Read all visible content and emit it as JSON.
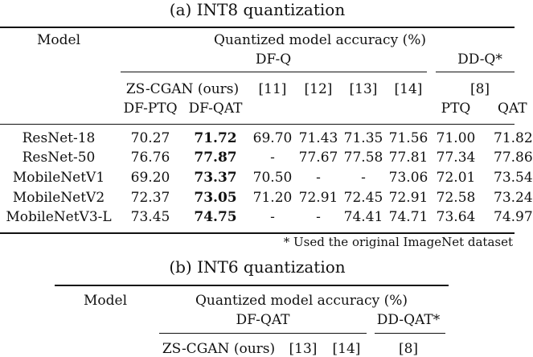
{
  "table_a": {
    "caption": "(a) INT8 quantization",
    "model_header": "Model",
    "group_header": "Quantized model accuracy (%)",
    "dfq_label": "DF-Q",
    "ddq_label": "DD-Q*",
    "zs_label": "ZS-CGAN (ours)",
    "ref11": "[11]",
    "ref12": "[12]",
    "ref13": "[13]",
    "ref14": "[14]",
    "ref8": "[8]",
    "col_ptq": "DF-PTQ",
    "col_qat": "DF-QAT",
    "col_dd_ptq": "PTQ",
    "col_dd_qat": "QAT",
    "rows": [
      {
        "model": "ResNet-18",
        "v": [
          "70.27",
          "71.72",
          "69.70",
          "71.43",
          "71.35",
          "71.56",
          "71.00",
          "71.82"
        ]
      },
      {
        "model": "ResNet-50",
        "v": [
          "76.76",
          "77.87",
          "-",
          "77.67",
          "77.58",
          "77.81",
          "77.34",
          "77.86"
        ]
      },
      {
        "model": "MobileNetV1",
        "v": [
          "69.20",
          "73.37",
          "70.50",
          "-",
          "-",
          "73.06",
          "72.01",
          "73.54"
        ]
      },
      {
        "model": "MobileNetV2",
        "v": [
          "72.37",
          "73.05",
          "71.20",
          "72.91",
          "72.45",
          "72.91",
          "72.58",
          "73.24"
        ]
      },
      {
        "model": "MobileNetV3-L",
        "v": [
          "73.45",
          "74.75",
          "-",
          "-",
          "74.41",
          "74.71",
          "73.64",
          "74.97"
        ]
      }
    ],
    "footnote": "* Used the original ImageNet dataset"
  },
  "table_b": {
    "caption": "(b) INT6 quantization",
    "model_header": "Model",
    "group_header": "Quantized model accuracy (%)",
    "dfqat_label": "DF-QAT",
    "ddqat_label": "DD-QAT*",
    "zs_label": "ZS-CGAN (ours)",
    "ref13": "[13]",
    "ref14": "[14]",
    "ref8": "[8]"
  }
}
